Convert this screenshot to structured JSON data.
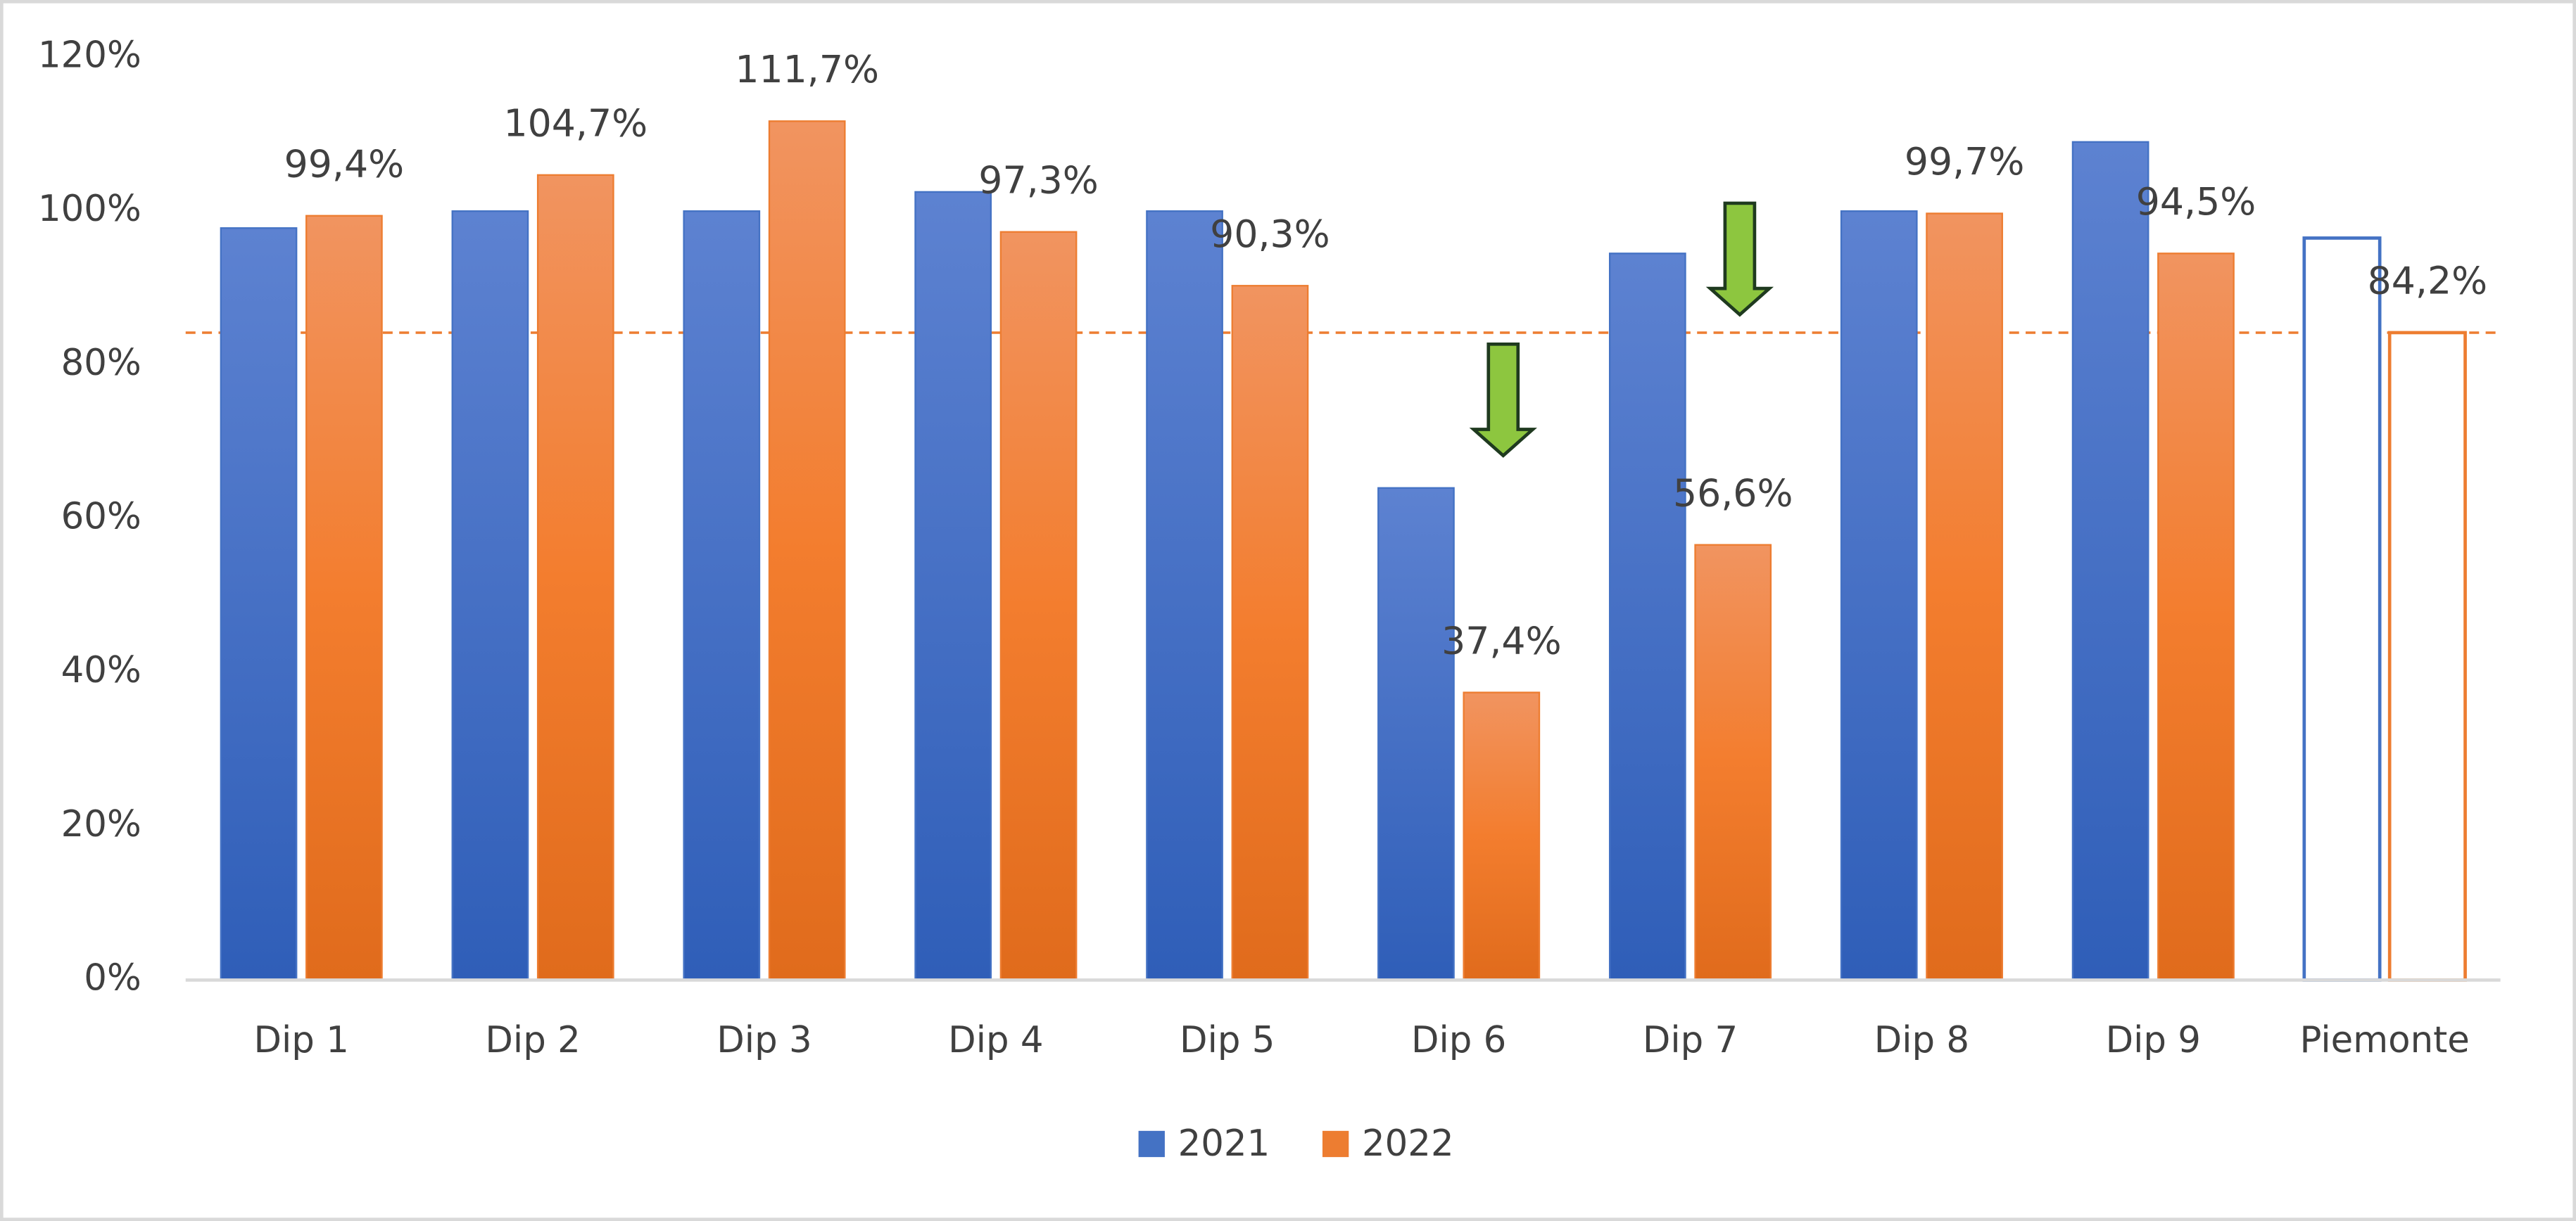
{
  "chart_data": {
    "type": "bar",
    "categories": [
      "Dip 1",
      "Dip 2",
      "Dip 3",
      "Dip 4",
      "Dip 5",
      "Dip 6",
      "Dip 7",
      "Dip 8",
      "Dip 9",
      "Piemonte"
    ],
    "series": [
      {
        "name": "2021",
        "color": "#4472c4",
        "values": [
          97.8,
          100,
          100,
          102.5,
          100,
          64,
          94.5,
          100,
          109,
          96.5
        ]
      },
      {
        "name": "2022",
        "color": "#ed7d31",
        "values": [
          99.4,
          104.7,
          111.7,
          97.3,
          90.3,
          37.4,
          56.6,
          99.7,
          94.5,
          84.2
        ],
        "value_labels": [
          "99,4%",
          "104,7%",
          "111,7%",
          "97,3%",
          "90,3%",
          "37,4%",
          "56,6%",
          "99,7%",
          "94,5%",
          "84,2%"
        ]
      }
    ],
    "ylim": [
      0,
      120
    ],
    "yticks": [
      {
        "value": 0,
        "label": "0%"
      },
      {
        "value": 20,
        "label": "20%"
      },
      {
        "value": 40,
        "label": "40%"
      },
      {
        "value": 60,
        "label": "60%"
      },
      {
        "value": 80,
        "label": "80%"
      },
      {
        "value": 100,
        "label": "100%"
      },
      {
        "value": 120,
        "label": "120%"
      }
    ],
    "grid": false,
    "legend": "bottom",
    "last_category_outlined": true
  }
}
